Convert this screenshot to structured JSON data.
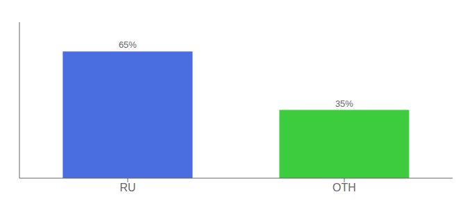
{
  "chart_data": {
    "type": "bar",
    "categories": [
      "RU",
      "OTH"
    ],
    "values": [
      65,
      35
    ],
    "value_labels": [
      "65%",
      "35%"
    ],
    "colors": [
      "#4a6ee0",
      "#3dcc3d"
    ],
    "ylim": [
      0,
      80
    ],
    "data_labels": true,
    "tick_labels": "x",
    "grid": false
  }
}
